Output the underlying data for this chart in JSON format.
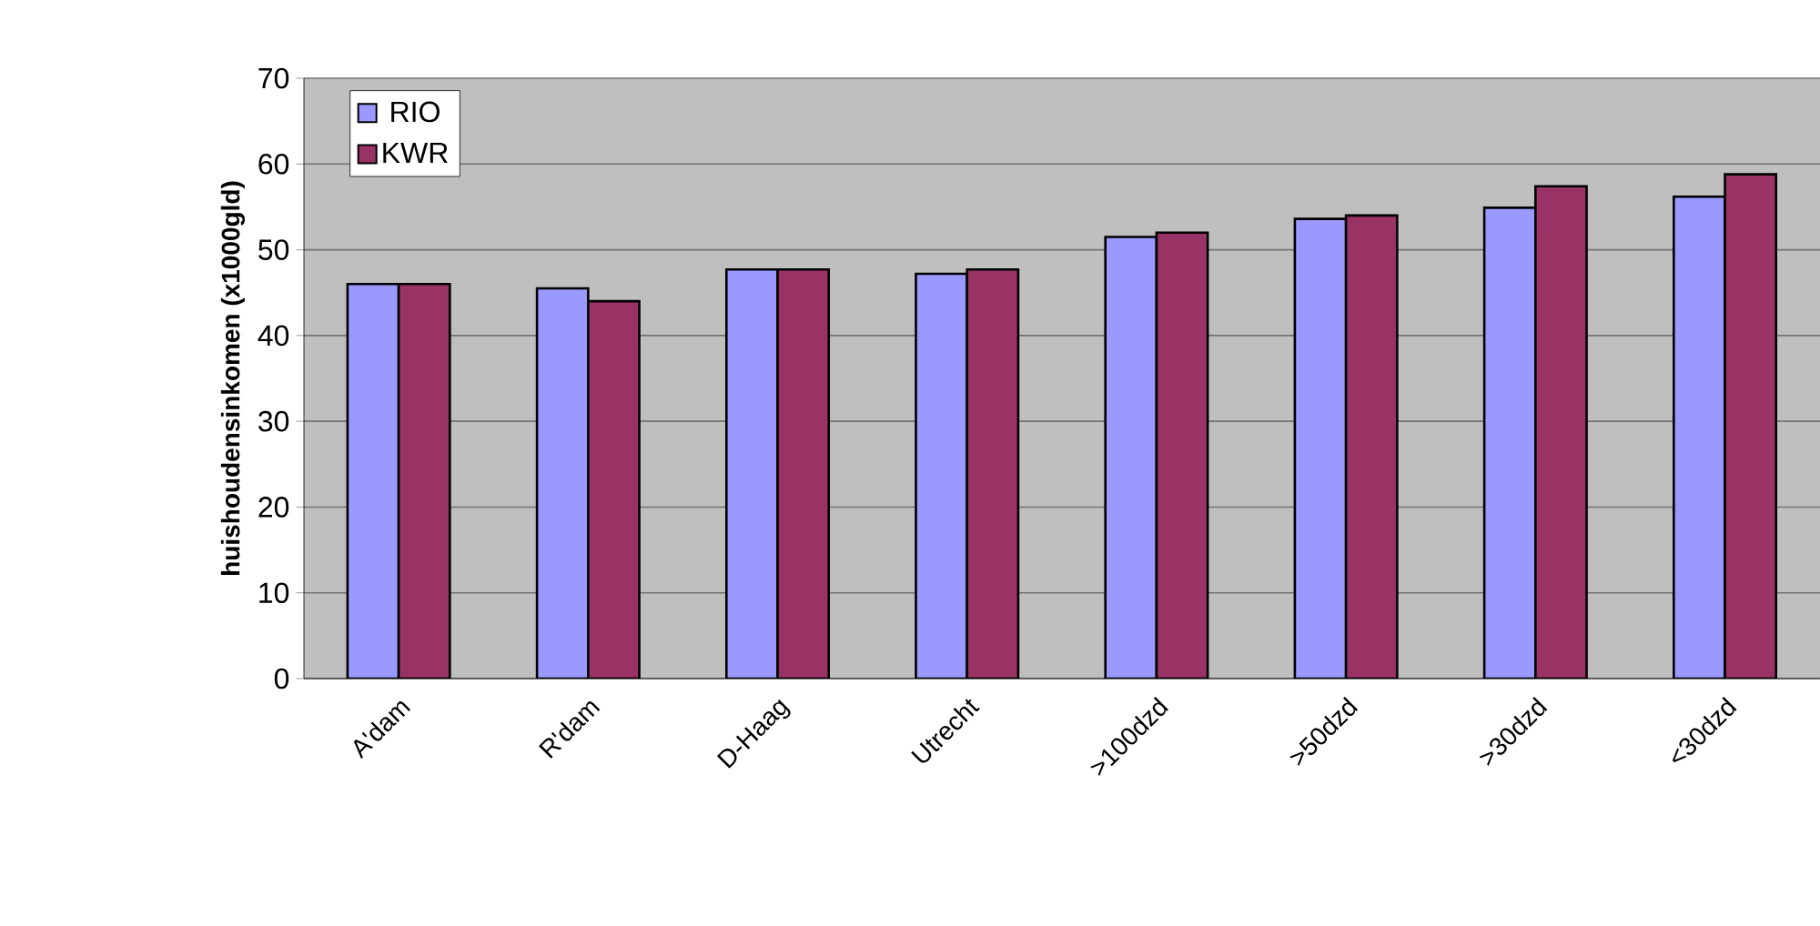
{
  "chart_data": {
    "type": "bar",
    "ylabel": "huishoudensinkomen (x1000gld)",
    "categories": [
      "A'dam",
      "R'dam",
      "D-Haag",
      "Utrecht",
      ">100dzd",
      ">50dzd",
      ">30dzd",
      "<30dzd"
    ],
    "series": [
      {
        "name": "RIO",
        "color": "#9999ff",
        "values": [
          46,
          45.5,
          47.7,
          47.2,
          51.5,
          53.6,
          54.9,
          56.2
        ]
      },
      {
        "name": "KWR",
        "color": "#993366",
        "values": [
          46,
          44,
          47.7,
          47.7,
          52,
          54,
          57.4,
          58.8
        ]
      }
    ],
    "ylim": [
      0,
      70
    ],
    "yticks": [
      0,
      10,
      20,
      30,
      40,
      50,
      60,
      70
    ],
    "grid": "y",
    "legend": "top left"
  }
}
